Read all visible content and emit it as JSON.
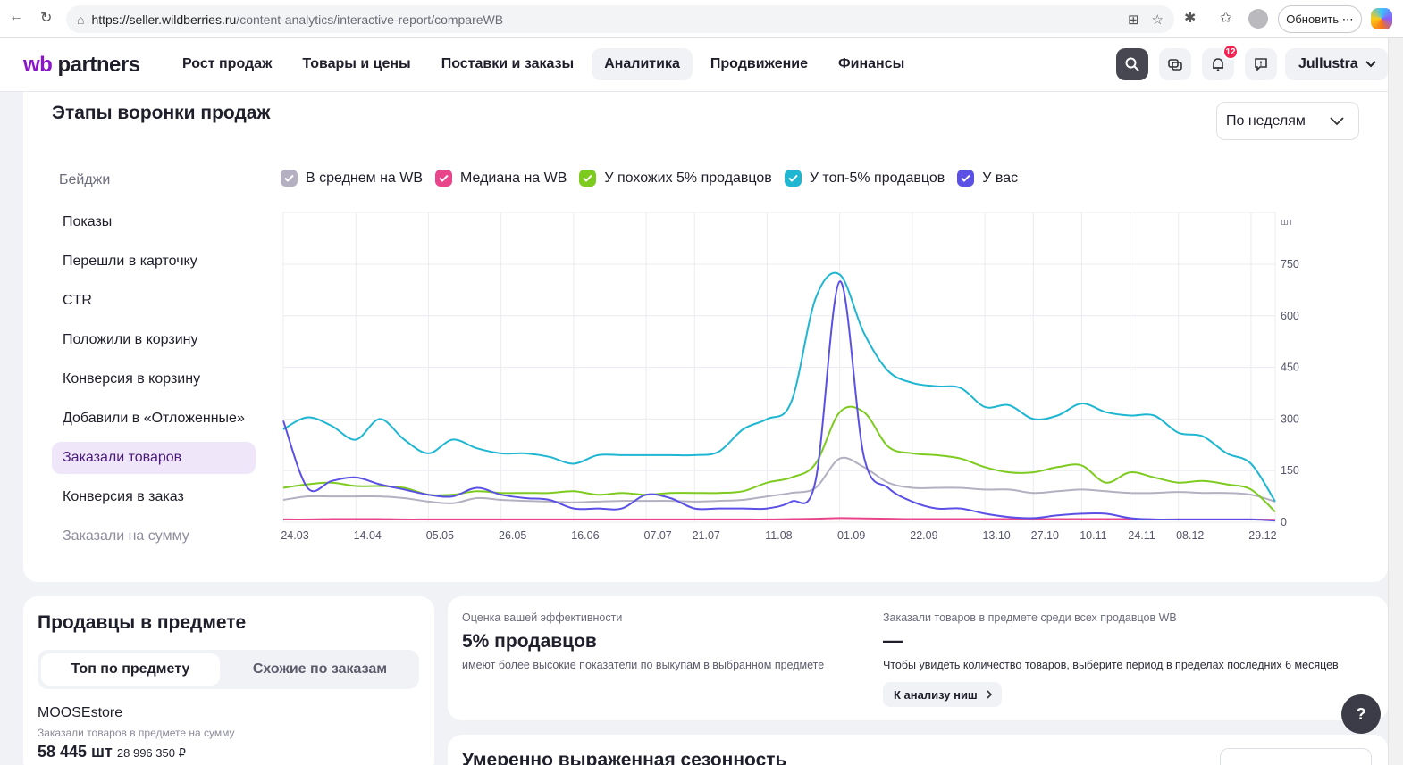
{
  "browser": {
    "url_host": "https://seller.wildberries.ru",
    "url_path": "/content-analytics/interactive-report/compareWB",
    "update_label": "Обновить"
  },
  "header": {
    "logo_wb": "wb",
    "logo_partners": "partners",
    "menu": [
      "Рост продаж",
      "Товары и цены",
      "Поставки и заказы",
      "Аналитика",
      "Продвижение",
      "Финансы"
    ],
    "active_menu": "Аналитика",
    "notifications_count": "12",
    "account_name": "Jullustra"
  },
  "funnel": {
    "title": "Этапы воронки продаж",
    "period": "По неделям",
    "badges_label": "Бейджи",
    "legend": [
      {
        "name": "В среднем на WB",
        "color": "#b4b0c2"
      },
      {
        "name": "Медиана на WB",
        "color": "#e8458b"
      },
      {
        "name": "У похожих 5% продавцов",
        "color": "#7ecb20"
      },
      {
        "name": "У топ-5% продавцов",
        "color": "#1fb6d2"
      },
      {
        "name": "У вас",
        "color": "#5b50e6"
      }
    ],
    "metrics": [
      "Показы",
      "Перешли в карточку",
      "CTR",
      "Положили в корзину",
      "Конверсия в корзину",
      "Добавили в «Отложенные»",
      "Заказали товаров",
      "Конверсия в заказ",
      "Заказали на сумму"
    ],
    "active_metric": "Заказали товаров"
  },
  "chart_data": {
    "type": "line",
    "unit": "шт",
    "ylim": [
      0,
      750
    ],
    "yticks": [
      0,
      150,
      300,
      450,
      600,
      750
    ],
    "xticks": [
      "24.03",
      "14.04",
      "05.05",
      "26.05",
      "16.06",
      "07.07",
      "21.07",
      "11.08",
      "01.09",
      "22.09",
      "13.10",
      "27.10",
      "10.11",
      "24.11",
      "08.12",
      "29.12"
    ],
    "x": [
      "24.03",
      "31.03",
      "07.04",
      "14.04",
      "21.04",
      "28.04",
      "05.05",
      "12.05",
      "19.05",
      "26.05",
      "02.06",
      "09.06",
      "16.06",
      "23.06",
      "30.06",
      "07.07",
      "14.07",
      "21.07",
      "28.07",
      "04.08",
      "11.08",
      "18.08",
      "25.08",
      "01.09",
      "08.09",
      "15.09",
      "22.09",
      "29.09",
      "06.10",
      "13.10",
      "20.10",
      "27.10",
      "03.11",
      "10.11",
      "17.11",
      "24.11",
      "01.12",
      "08.12",
      "15.12",
      "22.12",
      "29.12",
      "05.01"
    ],
    "series": [
      {
        "name": "В среднем на WB",
        "color": "#b4b0c2",
        "values": [
          65,
          75,
          75,
          75,
          75,
          70,
          60,
          55,
          70,
          65,
          62,
          60,
          58,
          60,
          62,
          62,
          62,
          60,
          62,
          65,
          75,
          85,
          100,
          185,
          160,
          115,
          100,
          100,
          100,
          95,
          95,
          85,
          90,
          95,
          90,
          85,
          85,
          88,
          85,
          85,
          80,
          60
        ]
      },
      {
        "name": "Медиана на WB",
        "color": "#e8458b",
        "values": [
          8,
          8,
          9,
          9,
          9,
          8,
          8,
          8,
          8,
          8,
          8,
          8,
          8,
          8,
          8,
          8,
          8,
          8,
          8,
          8,
          8,
          9,
          10,
          12,
          11,
          10,
          9,
          9,
          9,
          9,
          9,
          9,
          9,
          9,
          9,
          9,
          8,
          8,
          8,
          8,
          8,
          7
        ]
      },
      {
        "name": "У похожих 5% продавцов",
        "color": "#7ecb20",
        "values": [
          100,
          110,
          115,
          105,
          105,
          100,
          80,
          80,
          90,
          85,
          85,
          85,
          90,
          80,
          85,
          80,
          85,
          85,
          85,
          90,
          115,
          130,
          170,
          320,
          320,
          220,
          200,
          195,
          185,
          160,
          145,
          145,
          160,
          165,
          115,
          145,
          130,
          115,
          120,
          110,
          95,
          30
        ]
      },
      {
        "name": "У топ-5% продавцов",
        "color": "#1fb6d2",
        "values": [
          270,
          305,
          280,
          240,
          300,
          240,
          200,
          240,
          215,
          200,
          200,
          190,
          170,
          195,
          195,
          195,
          195,
          195,
          205,
          270,
          300,
          350,
          650,
          720,
          550,
          440,
          405,
          395,
          390,
          335,
          340,
          300,
          310,
          345,
          320,
          310,
          310,
          260,
          250,
          200,
          170,
          60
        ]
      },
      {
        "name": "У вас",
        "color": "#5b50e6",
        "values": [
          295,
          100,
          120,
          130,
          110,
          95,
          80,
          75,
          100,
          80,
          70,
          65,
          40,
          40,
          40,
          80,
          70,
          40,
          40,
          40,
          40,
          60,
          120,
          700,
          190,
          100,
          60,
          40,
          40,
          25,
          15,
          12,
          20,
          25,
          25,
          12,
          8,
          8,
          8,
          8,
          8,
          5
        ]
      }
    ]
  },
  "sellers": {
    "title": "Продавцы в предмете",
    "tab_top": "Топ по предмету",
    "tab_similar": "Схожие по заказам",
    "seller_name": "MOOSEstore",
    "seller_sub": "Заказали товаров в предмете на сумму",
    "seller_qty": "58 445 шт",
    "seller_sum": "28 996 350 ₽"
  },
  "efficiency": {
    "label": "Оценка вашей эффективности",
    "value": "5% продавцов",
    "note": "имеют более высокие показатели по выкупам в выбранном предмете",
    "orders_label": "Заказали товаров в предмете среди всех продавцов WB",
    "orders_value": "—",
    "orders_note": "Чтобы увидеть количество товаров, выберите период в пределах последних 6 месяцев",
    "niche_button": "К анализу ниш"
  },
  "seasonality": {
    "title": "Умеренно выраженная сезонность"
  },
  "help_label": "?"
}
